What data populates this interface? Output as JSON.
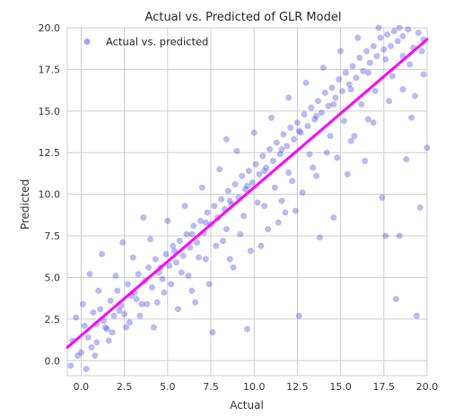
{
  "chart_data": {
    "type": "scatter",
    "title": "Actual vs. Predicted of GLR Model",
    "xlabel": "Actual",
    "ylabel": "Predicted",
    "xlim": [
      -0.8,
      20.0
    ],
    "ylim": [
      -0.9,
      20.0
    ],
    "x_ticks": [
      0.0,
      2.5,
      5.0,
      7.5,
      10.0,
      12.5,
      15.0,
      17.5,
      20.0
    ],
    "x_tick_labels": [
      "0.0",
      "2.5",
      "5.0",
      "7.5",
      "10.0",
      "12.5",
      "15.0",
      "17.5",
      "20.0"
    ],
    "y_ticks": [
      0.0,
      2.5,
      5.0,
      7.5,
      10.0,
      12.5,
      15.0,
      17.5,
      20.0
    ],
    "y_tick_labels": [
      "0.0",
      "2.5",
      "5.0",
      "7.5",
      "10.0",
      "12.5",
      "15.0",
      "17.5",
      "20.0"
    ],
    "grid": true,
    "legend": {
      "position": "top-left",
      "entries": [
        "Actual vs. predicted"
      ]
    },
    "colors": {
      "points": "#3b3bdc",
      "fit_line": "#ff00ff",
      "grid": "#cccccc"
    },
    "fit_line": {
      "x": [
        -0.8,
        20.0
      ],
      "y": [
        0.8,
        19.3
      ]
    },
    "series": [
      {
        "name": "Actual vs. predicted",
        "points": [
          [
            0.2,
            2.1
          ],
          [
            0.4,
            1.4
          ],
          [
            0.7,
            2.9
          ],
          [
            -0.5,
            1.2
          ],
          [
            -0.2,
            0.3
          ],
          [
            0.1,
            3.4
          ],
          [
            0.6,
            0.8
          ],
          [
            0.9,
            2.2
          ],
          [
            1.1,
            3.1
          ],
          [
            1.3,
            2.4
          ],
          [
            1.5,
            1.9
          ],
          [
            1.7,
            3.6
          ],
          [
            1.9,
            2.7
          ],
          [
            2.1,
            4.2
          ],
          [
            2.3,
            3.3
          ],
          [
            2.5,
            2.8
          ],
          [
            2.7,
            4.6
          ],
          [
            2.9,
            3.9
          ],
          [
            3.1,
            4.1
          ],
          [
            3.3,
            5.2
          ],
          [
            3.5,
            3.4
          ],
          [
            3.7,
            4.8
          ],
          [
            3.9,
            5.6
          ],
          [
            4.1,
            4.4
          ],
          [
            4.3,
            6.1
          ],
          [
            4.5,
            5.3
          ],
          [
            4.7,
            4.9
          ],
          [
            4.9,
            6.4
          ],
          [
            5.1,
            5.7
          ],
          [
            5.3,
            6.9
          ],
          [
            5.5,
            5.9
          ],
          [
            5.7,
            7.2
          ],
          [
            5.9,
            6.3
          ],
          [
            6.1,
            7.6
          ],
          [
            6.3,
            6.8
          ],
          [
            6.5,
            8.1
          ],
          [
            6.7,
            7.1
          ],
          [
            6.9,
            8.4
          ],
          [
            7.1,
            7.7
          ],
          [
            7.3,
            8.9
          ],
          [
            7.5,
            8.2
          ],
          [
            7.7,
            9.3
          ],
          [
            7.9,
            8.6
          ],
          [
            8.1,
            9.7
          ],
          [
            8.3,
            9.1
          ],
          [
            8.5,
            10.2
          ],
          [
            8.7,
            9.4
          ],
          [
            8.9,
            10.6
          ],
          [
            9.1,
            9.8
          ],
          [
            9.3,
            11.1
          ],
          [
            9.5,
            10.3
          ],
          [
            9.7,
            11.4
          ],
          [
            9.9,
            10.7
          ],
          [
            10.1,
            11.8
          ],
          [
            10.3,
            11.2
          ],
          [
            10.5,
            12.3
          ],
          [
            10.7,
            11.6
          ],
          [
            10.9,
            12.7
          ],
          [
            11.1,
            12.0
          ],
          [
            11.3,
            13.1
          ],
          [
            11.5,
            12.4
          ],
          [
            11.7,
            13.6
          ],
          [
            11.9,
            12.9
          ],
          [
            12.1,
            14.0
          ],
          [
            12.3,
            13.3
          ],
          [
            12.5,
            14.3
          ],
          [
            12.7,
            13.7
          ],
          [
            12.9,
            14.8
          ],
          [
            13.1,
            14.1
          ],
          [
            13.3,
            15.2
          ],
          [
            13.5,
            14.5
          ],
          [
            13.7,
            15.6
          ],
          [
            13.9,
            14.9
          ],
          [
            14.1,
            16.1
          ],
          [
            14.3,
            15.3
          ],
          [
            14.5,
            16.4
          ],
          [
            14.7,
            15.8
          ],
          [
            14.9,
            16.9
          ],
          [
            15.1,
            16.2
          ],
          [
            15.3,
            17.3
          ],
          [
            15.5,
            16.6
          ],
          [
            15.7,
            17.7
          ],
          [
            15.9,
            17.0
          ],
          [
            16.1,
            18.2
          ],
          [
            16.3,
            17.4
          ],
          [
            16.5,
            18.6
          ],
          [
            16.7,
            17.9
          ],
          [
            16.9,
            18.9
          ],
          [
            17.1,
            18.3
          ],
          [
            17.3,
            19.4
          ],
          [
            17.5,
            18.7
          ],
          [
            17.7,
            19.6
          ],
          [
            17.9,
            18.9
          ],
          [
            18.1,
            19.8
          ],
          [
            18.3,
            19.2
          ],
          [
            18.6,
            19.5
          ],
          [
            18.9,
            19.9
          ],
          [
            19.2,
            18.8
          ],
          [
            19.5,
            19.7
          ],
          [
            19.8,
            19.3
          ],
          [
            0.3,
            -0.5
          ],
          [
            -0.6,
            -0.3
          ],
          [
            0.5,
            5.2
          ],
          [
            1.2,
            6.4
          ],
          [
            2.4,
            7.1
          ],
          [
            3.6,
            8.6
          ],
          [
            4.2,
            2.0
          ],
          [
            5.6,
            3.1
          ],
          [
            6.4,
            4.2
          ],
          [
            7.6,
            1.7
          ],
          [
            8.4,
            13.3
          ],
          [
            9.6,
            1.9
          ],
          [
            8.6,
            6.1
          ],
          [
            10.4,
            6.9
          ],
          [
            11.4,
            8.3
          ],
          [
            12.4,
            9.0
          ],
          [
            12.6,
            2.7
          ],
          [
            13.8,
            7.4
          ],
          [
            14.6,
            8.6
          ],
          [
            15.4,
            11.2
          ],
          [
            16.4,
            12.0
          ],
          [
            17.4,
            9.8
          ],
          [
            17.6,
            7.5
          ],
          [
            18.4,
            7.5
          ],
          [
            18.2,
            3.7
          ],
          [
            19.4,
            2.7
          ],
          [
            19.6,
            9.2
          ],
          [
            20.0,
            12.8
          ],
          [
            19.1,
            14.6
          ],
          [
            18.8,
            12.1
          ],
          [
            16.9,
            14.3
          ],
          [
            15.8,
            13.5
          ],
          [
            14.2,
            12.5
          ],
          [
            13.4,
            11.6
          ],
          [
            12.2,
            10.8
          ],
          [
            11.6,
            9.6
          ],
          [
            10.6,
            9.3
          ],
          [
            9.2,
            7.6
          ],
          [
            8.2,
            7.2
          ],
          [
            7.2,
            6.1
          ],
          [
            6.2,
            5.1
          ],
          [
            5.2,
            4.6
          ],
          [
            4.4,
            3.5
          ],
          [
            3.4,
            2.7
          ],
          [
            2.6,
            2.0
          ],
          [
            1.6,
            1.2
          ],
          [
            0.8,
            0.3
          ],
          [
            0.0,
            0.5
          ],
          [
            -0.3,
            2.6
          ],
          [
            1.0,
            4.2
          ],
          [
            2.0,
            5.1
          ],
          [
            3.0,
            6.2
          ],
          [
            4.0,
            7.3
          ],
          [
            5.0,
            8.4
          ],
          [
            6.0,
            9.3
          ],
          [
            7.0,
            10.4
          ],
          [
            8.0,
            11.5
          ],
          [
            9.0,
            12.6
          ],
          [
            10.0,
            13.7
          ],
          [
            11.0,
            14.6
          ],
          [
            12.0,
            15.8
          ],
          [
            13.0,
            16.7
          ],
          [
            14.0,
            17.6
          ],
          [
            15.0,
            18.6
          ],
          [
            16.0,
            19.4
          ],
          [
            6.6,
            3.5
          ],
          [
            7.4,
            4.6
          ],
          [
            8.8,
            5.6
          ],
          [
            9.8,
            6.6
          ],
          [
            10.8,
            7.9
          ],
          [
            11.8,
            8.9
          ],
          [
            12.8,
            10.1
          ],
          [
            13.6,
            11.1
          ],
          [
            14.8,
            12.2
          ],
          [
            15.6,
            13.2
          ],
          [
            16.6,
            14.5
          ],
          [
            17.8,
            15.6
          ],
          [
            18.6,
            16.3
          ],
          [
            19.8,
            17.2
          ],
          [
            19.3,
            15.9
          ],
          [
            18.0,
            17.1
          ],
          [
            17.0,
            16.2
          ],
          [
            16.2,
            15.4
          ],
          [
            15.2,
            14.4
          ],
          [
            14.4,
            13.5
          ],
          [
            13.2,
            12.4
          ],
          [
            12.0,
            11.3
          ],
          [
            11.2,
            10.4
          ],
          [
            10.2,
            9.5
          ],
          [
            9.4,
            8.7
          ],
          [
            8.4,
            7.9
          ],
          [
            7.8,
            6.9
          ],
          [
            6.8,
            6.2
          ],
          [
            5.8,
            5.3
          ],
          [
            4.8,
            4.1
          ],
          [
            3.8,
            3.4
          ],
          [
            2.8,
            2.3
          ],
          [
            1.8,
            1.7
          ],
          [
            0.9,
            1.1
          ],
          [
            1.4,
            2.0
          ],
          [
            2.2,
            3.0
          ],
          [
            3.2,
            3.7
          ],
          [
            4.6,
            5.6
          ],
          [
            5.4,
            6.6
          ],
          [
            6.4,
            7.6
          ],
          [
            7.2,
            8.3
          ],
          [
            8.6,
            9.6
          ],
          [
            9.6,
            10.5
          ],
          [
            10.6,
            11.4
          ],
          [
            11.6,
            12.7
          ],
          [
            12.6,
            13.8
          ],
          [
            13.6,
            14.7
          ],
          [
            14.6,
            15.4
          ],
          [
            15.6,
            16.3
          ],
          [
            16.6,
            17.3
          ],
          [
            17.6,
            18.1
          ],
          [
            18.6,
            18.3
          ],
          [
            19.0,
            17.8
          ],
          [
            19.7,
            18.6
          ],
          [
            18.4,
            20.0
          ],
          [
            17.2,
            20.0
          ]
        ]
      }
    ]
  }
}
